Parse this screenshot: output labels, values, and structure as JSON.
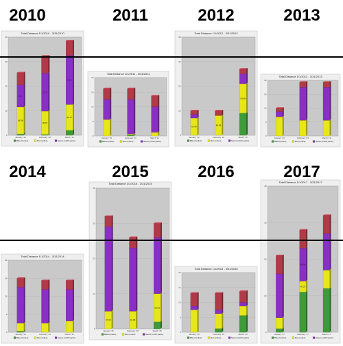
{
  "legend": [
    "Biked (miles)",
    "Ran (miles)",
    "Swam (x100 yards)"
  ],
  "colors": {
    "biked": "#3f9a3a",
    "ran": "#e6e61a",
    "swam": "#8a2fc4",
    "extra": "#b03a48",
    "plot_bg": "#c9c9c9",
    "reference_line": "#000000"
  },
  "chart_data": [
    {
      "type": "bar",
      "stacked": true,
      "year_label": "2010",
      "title": "Total Distance 1/1/2010 - 3/31/2010",
      "categories": [
        "January '10",
        "February '10",
        "March '10"
      ],
      "ylim": [
        0,
        40
      ],
      "series": [
        {
          "name": "Biked (miles)",
          "values": [
            0.5,
            0.3,
            2
          ]
        },
        {
          "name": "Ran (miles)",
          "values": [
            11,
            9.5,
            10.5
          ]
        },
        {
          "name": "Swam (x100 yards)",
          "values": [
            9,
            15.5,
            20
          ]
        },
        {
          "name": "",
          "values": [
            5,
            7,
            6
          ]
        }
      ],
      "data_labels": [
        [
          "",
          "98.38",
          "8.2"
        ],
        [
          "",
          "95.97",
          "15.3"
        ],
        [
          "",
          "86.11",
          "15.3"
        ]
      ]
    },
    {
      "type": "bar",
      "stacked": true,
      "year_label": "2011",
      "title": "Total Distance 1/1/2011 - 3/31/2011",
      "categories": [
        "January '11",
        "February '11",
        "March '11"
      ],
      "ylim": [
        0,
        32
      ],
      "series": [
        {
          "name": "Biked (miles)",
          "values": [
            0,
            0.5,
            0
          ]
        },
        {
          "name": "Ran (miles)",
          "values": [
            9,
            0.5,
            2
          ]
        },
        {
          "name": "Swam (x100 yards)",
          "values": [
            11,
            19,
            14
          ]
        },
        {
          "name": "",
          "values": [
            6,
            6,
            6
          ]
        }
      ],
      "data_labels": [
        [
          "",
          "",
          ""
        ],
        [
          "",
          "",
          ""
        ],
        [
          "",
          "",
          ""
        ]
      ]
    },
    {
      "type": "bar",
      "stacked": true,
      "year_label": "2012",
      "title": "Total Distance 1/1/2012 - 3/31/2012",
      "categories": [
        "January '12",
        "February '12",
        "March '12"
      ],
      "ylim": [
        0,
        40
      ],
      "series": [
        {
          "name": "Biked (miles)",
          "values": [
            0,
            0,
            9
          ]
        },
        {
          "name": "Ran (miles)",
          "values": [
            7,
            8,
            12
          ]
        },
        {
          "name": "Swam (x100 yards)",
          "values": [
            1.5,
            0,
            4
          ]
        },
        {
          "name": "",
          "values": [
            1.5,
            2,
            2
          ]
        }
      ],
      "data_labels": [
        [
          "",
          "81.46",
          ""
        ],
        [
          "",
          "89.08",
          ""
        ],
        [
          "",
          "95.88",
          ""
        ]
      ]
    },
    {
      "type": "bar",
      "stacked": true,
      "year_label": "2013",
      "title": "Total Distance 1/1/2013 - 3/31/2013",
      "categories": [
        "January '13",
        "February '13",
        "March '13"
      ],
      "ylim": [
        0,
        32
      ],
      "series": [
        {
          "name": "Biked (miles)",
          "values": [
            0,
            0,
            0
          ]
        },
        {
          "name": "Ran (miles)",
          "values": [
            11,
            9,
            9
          ]
        },
        {
          "name": "Swam (x100 yards)",
          "values": [
            3,
            19,
            19
          ]
        },
        {
          "name": "",
          "values": [
            2,
            3,
            3
          ]
        }
      ],
      "data_labels": [
        [
          "",
          "",
          ""
        ],
        [
          "",
          "",
          ""
        ],
        [
          "",
          "",
          ""
        ]
      ]
    },
    {
      "type": "bar",
      "stacked": true,
      "year_label": "2014",
      "title": "Total Distance 1/1/2014 - 3/31/2014",
      "categories": [
        "January '14",
        "February '14",
        "March '14"
      ],
      "ylim": [
        0,
        32
      ],
      "series": [
        {
          "name": "Biked (miles)",
          "values": [
            0.5,
            0,
            0
          ]
        },
        {
          "name": "Ran (miles)",
          "values": [
            3.5,
            4,
            5
          ]
        },
        {
          "name": "Swam (x100 yards)",
          "values": [
            16,
            15,
            14
          ]
        },
        {
          "name": "",
          "values": [
            4,
            4,
            4
          ]
        }
      ],
      "data_labels": [
        [
          "",
          "",
          ""
        ],
        [
          "",
          "",
          ""
        ],
        [
          "",
          "",
          ""
        ]
      ]
    },
    {
      "type": "bar",
      "stacked": true,
      "year_label": "2015",
      "title": "Total Distance 1/1/2015 - 3/31/2015",
      "categories": [
        "January '15",
        "February '15",
        "March '15"
      ],
      "ylim": [
        0,
        40
      ],
      "series": [
        {
          "name": "Biked (miles)",
          "values": [
            0,
            0,
            2
          ]
        },
        {
          "name": "Ran (miles)",
          "values": [
            5,
            5,
            8
          ]
        },
        {
          "name": "Swam (x100 yards)",
          "values": [
            24,
            18,
            16
          ]
        },
        {
          "name": "",
          "values": [
            3,
            3,
            4
          ]
        }
      ],
      "data_labels": [
        [
          "",
          "97.00",
          ""
        ],
        [
          "",
          "91.95",
          ""
        ],
        [
          "",
          "58.03",
          ""
        ]
      ]
    },
    {
      "type": "bar",
      "stacked": true,
      "year_label": "2016",
      "title": "Total Distance 1/1/2016 - 3/31/2016",
      "categories": [
        "January '16",
        "February '16",
        "March '16"
      ],
      "ylim": [
        0,
        32
      ],
      "series": [
        {
          "name": "Biked (miles)",
          "values": [
            0,
            2,
            9
          ]
        },
        {
          "name": "Ran (miles)",
          "values": [
            12,
            8,
            5
          ]
        },
        {
          "name": "Swam (x100 yards)",
          "values": [
            2,
            2,
            2
          ]
        },
        {
          "name": "",
          "values": [
            7,
            9,
            6
          ]
        }
      ],
      "data_labels": [
        [
          "",
          "",
          ""
        ],
        [
          "",
          "",
          ""
        ],
        [
          "",
          "",
          ""
        ]
      ]
    },
    {
      "type": "bar",
      "stacked": true,
      "year_label": "2017",
      "title": "Total Distance 1/1/2017 - 3/31/2017",
      "categories": [
        "January '17",
        "February '17",
        "March '17"
      ],
      "ylim": [
        0,
        40
      ],
      "series": [
        {
          "name": "Biked (miles)",
          "values": [
            1,
            11,
            12
          ]
        },
        {
          "name": "Ran (miles)",
          "values": [
            3,
            3,
            5
          ]
        },
        {
          "name": "Swam (x100 yards)",
          "values": [
            12,
            9,
            10
          ]
        },
        {
          "name": "",
          "values": [
            5,
            5,
            5
          ]
        }
      ],
      "data_labels": [
        [
          "",
          "",
          ""
        ],
        [
          "",
          "40.29",
          "68.99"
        ],
        [
          "",
          "",
          ""
        ]
      ]
    }
  ]
}
